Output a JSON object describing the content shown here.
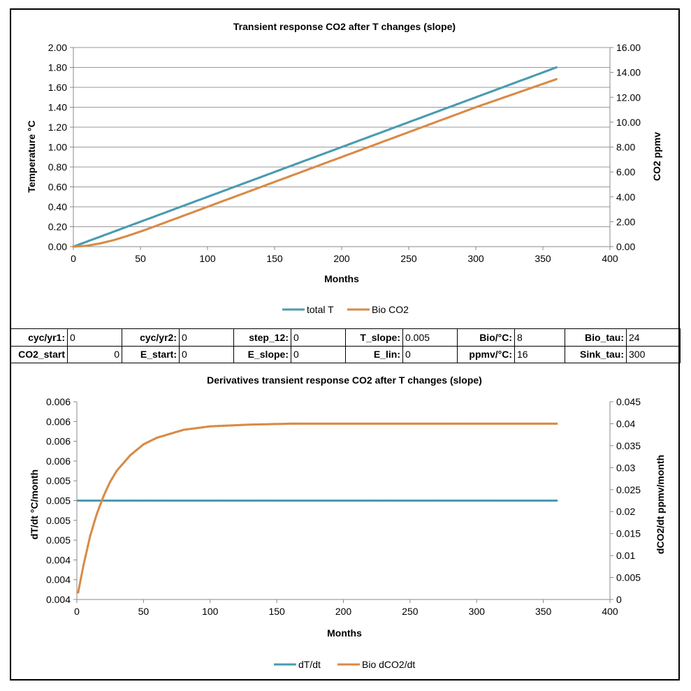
{
  "chart_data": [
    {
      "type": "line",
      "title": "Transient response CO2 after T changes (slope)",
      "xlabel": "Months",
      "ylabel_left": "Temperature °C",
      "ylabel_right": "CO2 ppmv",
      "xlim": [
        0,
        400
      ],
      "ylim_left": [
        0,
        2
      ],
      "ylim_right": [
        0,
        16
      ],
      "x_ticks": [
        "0",
        "50",
        "100",
        "150",
        "200",
        "250",
        "300",
        "350",
        "400"
      ],
      "y_ticks_left": [
        "0.00",
        "0.20",
        "0.40",
        "0.60",
        "0.80",
        "1.00",
        "1.20",
        "1.40",
        "1.60",
        "1.80",
        "2.00"
      ],
      "y_ticks_right": [
        "0.00",
        "2.00",
        "4.00",
        "6.00",
        "8.00",
        "10.00",
        "12.00",
        "14.00",
        "16.00"
      ],
      "grid": true,
      "legend": "bottom",
      "series": [
        {
          "name": "total T",
          "axis": "left",
          "color": "#4a9bb0",
          "x": [
            0,
            360
          ],
          "y": [
            0.0,
            1.8
          ]
        },
        {
          "name": "Bio CO2",
          "axis": "right",
          "color": "#d98a46",
          "x": [
            0,
            10,
            20,
            30,
            40,
            50,
            60,
            80,
            100,
            120,
            150,
            200,
            250,
            300,
            360
          ],
          "y": [
            0.0,
            0.07,
            0.26,
            0.52,
            0.85,
            1.21,
            1.6,
            2.4,
            3.2,
            4.0,
            5.2,
            7.2,
            9.2,
            11.2,
            13.45
          ]
        }
      ]
    },
    {
      "type": "line",
      "title": "Derivatives transient response CO2 after T changes (slope)",
      "xlabel": "Months",
      "ylabel_left": "dT/dt  °C/month",
      "ylabel_right": "dCO2/dt ppmv/month",
      "xlim": [
        0,
        400
      ],
      "ylim_left": [
        0.0035,
        0.0065
      ],
      "ylim_right": [
        0,
        0.045
      ],
      "x_ticks": [
        "0",
        "50",
        "100",
        "150",
        "200",
        "250",
        "300",
        "350",
        "400"
      ],
      "y_ticks_left": [
        "0.004",
        "0.004",
        "0.004",
        "0.005",
        "0.005",
        "0.005",
        "0.005",
        "0.006",
        "0.006",
        "0.006",
        "0.006"
      ],
      "y_ticks_right": [
        "0",
        "0.005",
        "0.01",
        "0.015",
        "0.02",
        "0.025",
        "0.03",
        "0.035",
        "0.04",
        "0.045"
      ],
      "grid": false,
      "legend": "bottom",
      "series": [
        {
          "name": "dT/dt",
          "axis": "left",
          "color": "#4a9bb0",
          "x": [
            1,
            360
          ],
          "y": [
            0.005,
            0.005
          ]
        },
        {
          "name": "Bio dCO2/dt",
          "axis": "right",
          "color": "#d98a46",
          "x": [
            1,
            5,
            10,
            15,
            20,
            25,
            30,
            40,
            50,
            60,
            80,
            100,
            130,
            160,
            200,
            250,
            300,
            360
          ],
          "y": [
            0.0016,
            0.0078,
            0.0145,
            0.0195,
            0.0235,
            0.0268,
            0.0293,
            0.0328,
            0.0353,
            0.0368,
            0.0386,
            0.0394,
            0.0398,
            0.04,
            0.04,
            0.04,
            0.04,
            0.04
          ]
        }
      ]
    }
  ],
  "params": {
    "row1": [
      {
        "label": "cyc/yr1:",
        "value": "0"
      },
      {
        "label": "cyc/yr2:",
        "value": "0"
      },
      {
        "label": "step_12:",
        "value": "0"
      },
      {
        "label": "T_slope:",
        "value": "0.005"
      },
      {
        "label": "Bio/°C:",
        "value": "8"
      },
      {
        "label": "Bio_tau:",
        "value": "24"
      }
    ],
    "row2": [
      {
        "label": "CO2_start",
        "value": "0"
      },
      {
        "label": "E_start:",
        "value": "0"
      },
      {
        "label": "E_slope:",
        "value": "0"
      },
      {
        "label": "E_lin:",
        "value": "0"
      },
      {
        "label": "ppmv/°C:",
        "value": "16"
      },
      {
        "label": "Sink_tau:",
        "value": "300"
      }
    ]
  }
}
